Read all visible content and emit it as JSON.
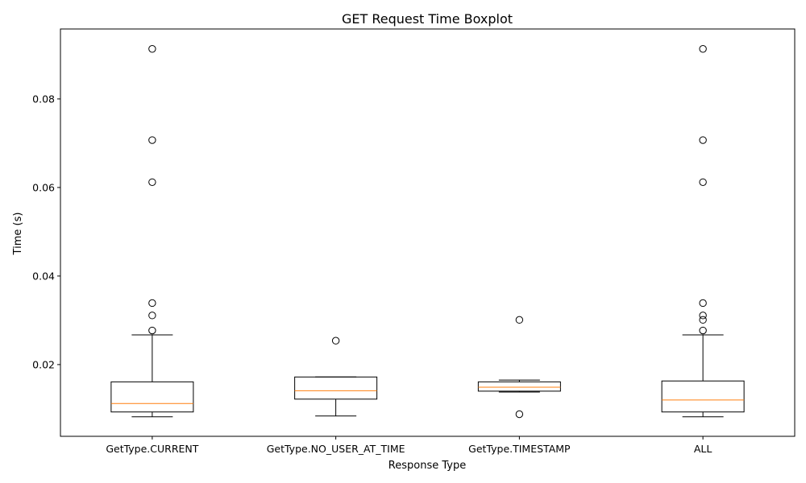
{
  "chart_data": {
    "type": "boxplot",
    "title": "GET Request Time Boxplot",
    "xlabel": "Response Type",
    "ylabel": "Time (s)",
    "ylim": [
      0.0038,
      0.0958
    ],
    "yticks": [
      0.02,
      0.04,
      0.06,
      0.08
    ],
    "ytick_labels": [
      "0.02",
      "0.04",
      "0.06",
      "0.08"
    ],
    "grid": false,
    "colors": {
      "box": "#000000",
      "median": "#ff7f0e",
      "flier": "#000000"
    },
    "categories": [
      "GetType.CURRENT",
      "GetType.NO_USER_AT_TIME",
      "GetType.TIMESTAMP",
      "ALL"
    ],
    "boxes": [
      {
        "whisker_low": 0.0082,
        "q1": 0.0093,
        "median": 0.0112,
        "q3": 0.0161,
        "whisker_high": 0.0267,
        "outliers": [
          0.0277,
          0.0311,
          0.0339,
          0.0612,
          0.0707,
          0.0913
        ]
      },
      {
        "whisker_low": 0.0084,
        "q1": 0.0122,
        "median": 0.0141,
        "q3": 0.0172,
        "whisker_high": 0.0172,
        "outliers": [
          0.0254
        ]
      },
      {
        "whisker_low": 0.0138,
        "q1": 0.014,
        "median": 0.0149,
        "q3": 0.0161,
        "whisker_high": 0.0165,
        "outliers": [
          0.0088,
          0.0301
        ]
      },
      {
        "whisker_low": 0.0082,
        "q1": 0.0093,
        "median": 0.012,
        "q3": 0.0163,
        "whisker_high": 0.0267,
        "outliers": [
          0.0277,
          0.0301,
          0.0311,
          0.0339,
          0.0612,
          0.0707,
          0.0913
        ]
      }
    ]
  }
}
